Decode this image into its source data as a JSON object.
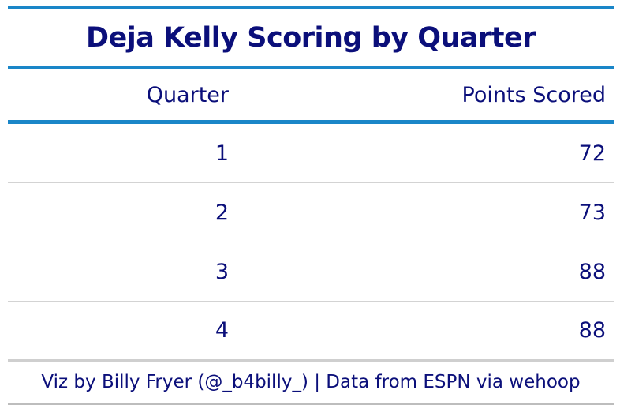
{
  "chart_data": {
    "type": "table",
    "title": "Deja Kelly Scoring by Quarter",
    "columns": [
      "Quarter",
      "Points Scored"
    ],
    "rows": [
      {
        "quarter": "1",
        "points": "72"
      },
      {
        "quarter": "2",
        "points": "73"
      },
      {
        "quarter": "3",
        "points": "88"
      },
      {
        "quarter": "4",
        "points": "88"
      }
    ],
    "source_note": "Viz by Billy Fryer (@_b4billy_) | Data from ESPN via wehoop"
  },
  "colors": {
    "text": "#0b0f7a",
    "accent_rule": "#1a86c8",
    "row_divider": "#d3d3d3"
  }
}
